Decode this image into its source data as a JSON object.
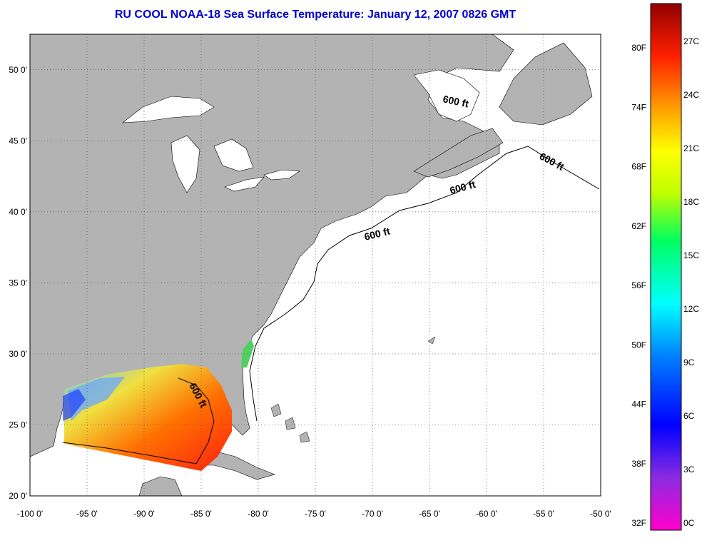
{
  "title": "RU COOL  NOAA-18  Sea Surface Temperature:  January 12, 2007 0826 GMT",
  "map": {
    "lon_ticks": [
      "-100 0'",
      "-95 0'",
      "-90 0'",
      "-85 0'",
      "-80 0'",
      "-75 0'",
      "-70 0'",
      "-65 0'",
      "-60 0'",
      "-55 0'",
      "-50 0'"
    ],
    "lat_ticks": [
      "20 0'",
      "25 0'",
      "30 0'",
      "35 0'",
      "40 0'",
      "45 0'",
      "50 0'"
    ],
    "lon_range": [
      -100,
      -50
    ],
    "lat_range": [
      20,
      52.5
    ],
    "contour_labels": [
      "600 ft",
      "600 ft",
      "600 ft",
      "600 ft",
      "600 ft"
    ],
    "colors": {
      "land": "#b3b3b3",
      "water": "#ffffff",
      "grid": "#555555"
    }
  },
  "colorbar": {
    "fahrenheit_labels": [
      "80F",
      "74F",
      "68F",
      "62F",
      "56F",
      "50F",
      "44F",
      "38F",
      "32F"
    ],
    "celsius_labels": [
      "27C",
      "24C",
      "21C",
      "18C",
      "15C",
      "12C",
      "9C",
      "6C",
      "3C",
      "0C"
    ]
  }
}
